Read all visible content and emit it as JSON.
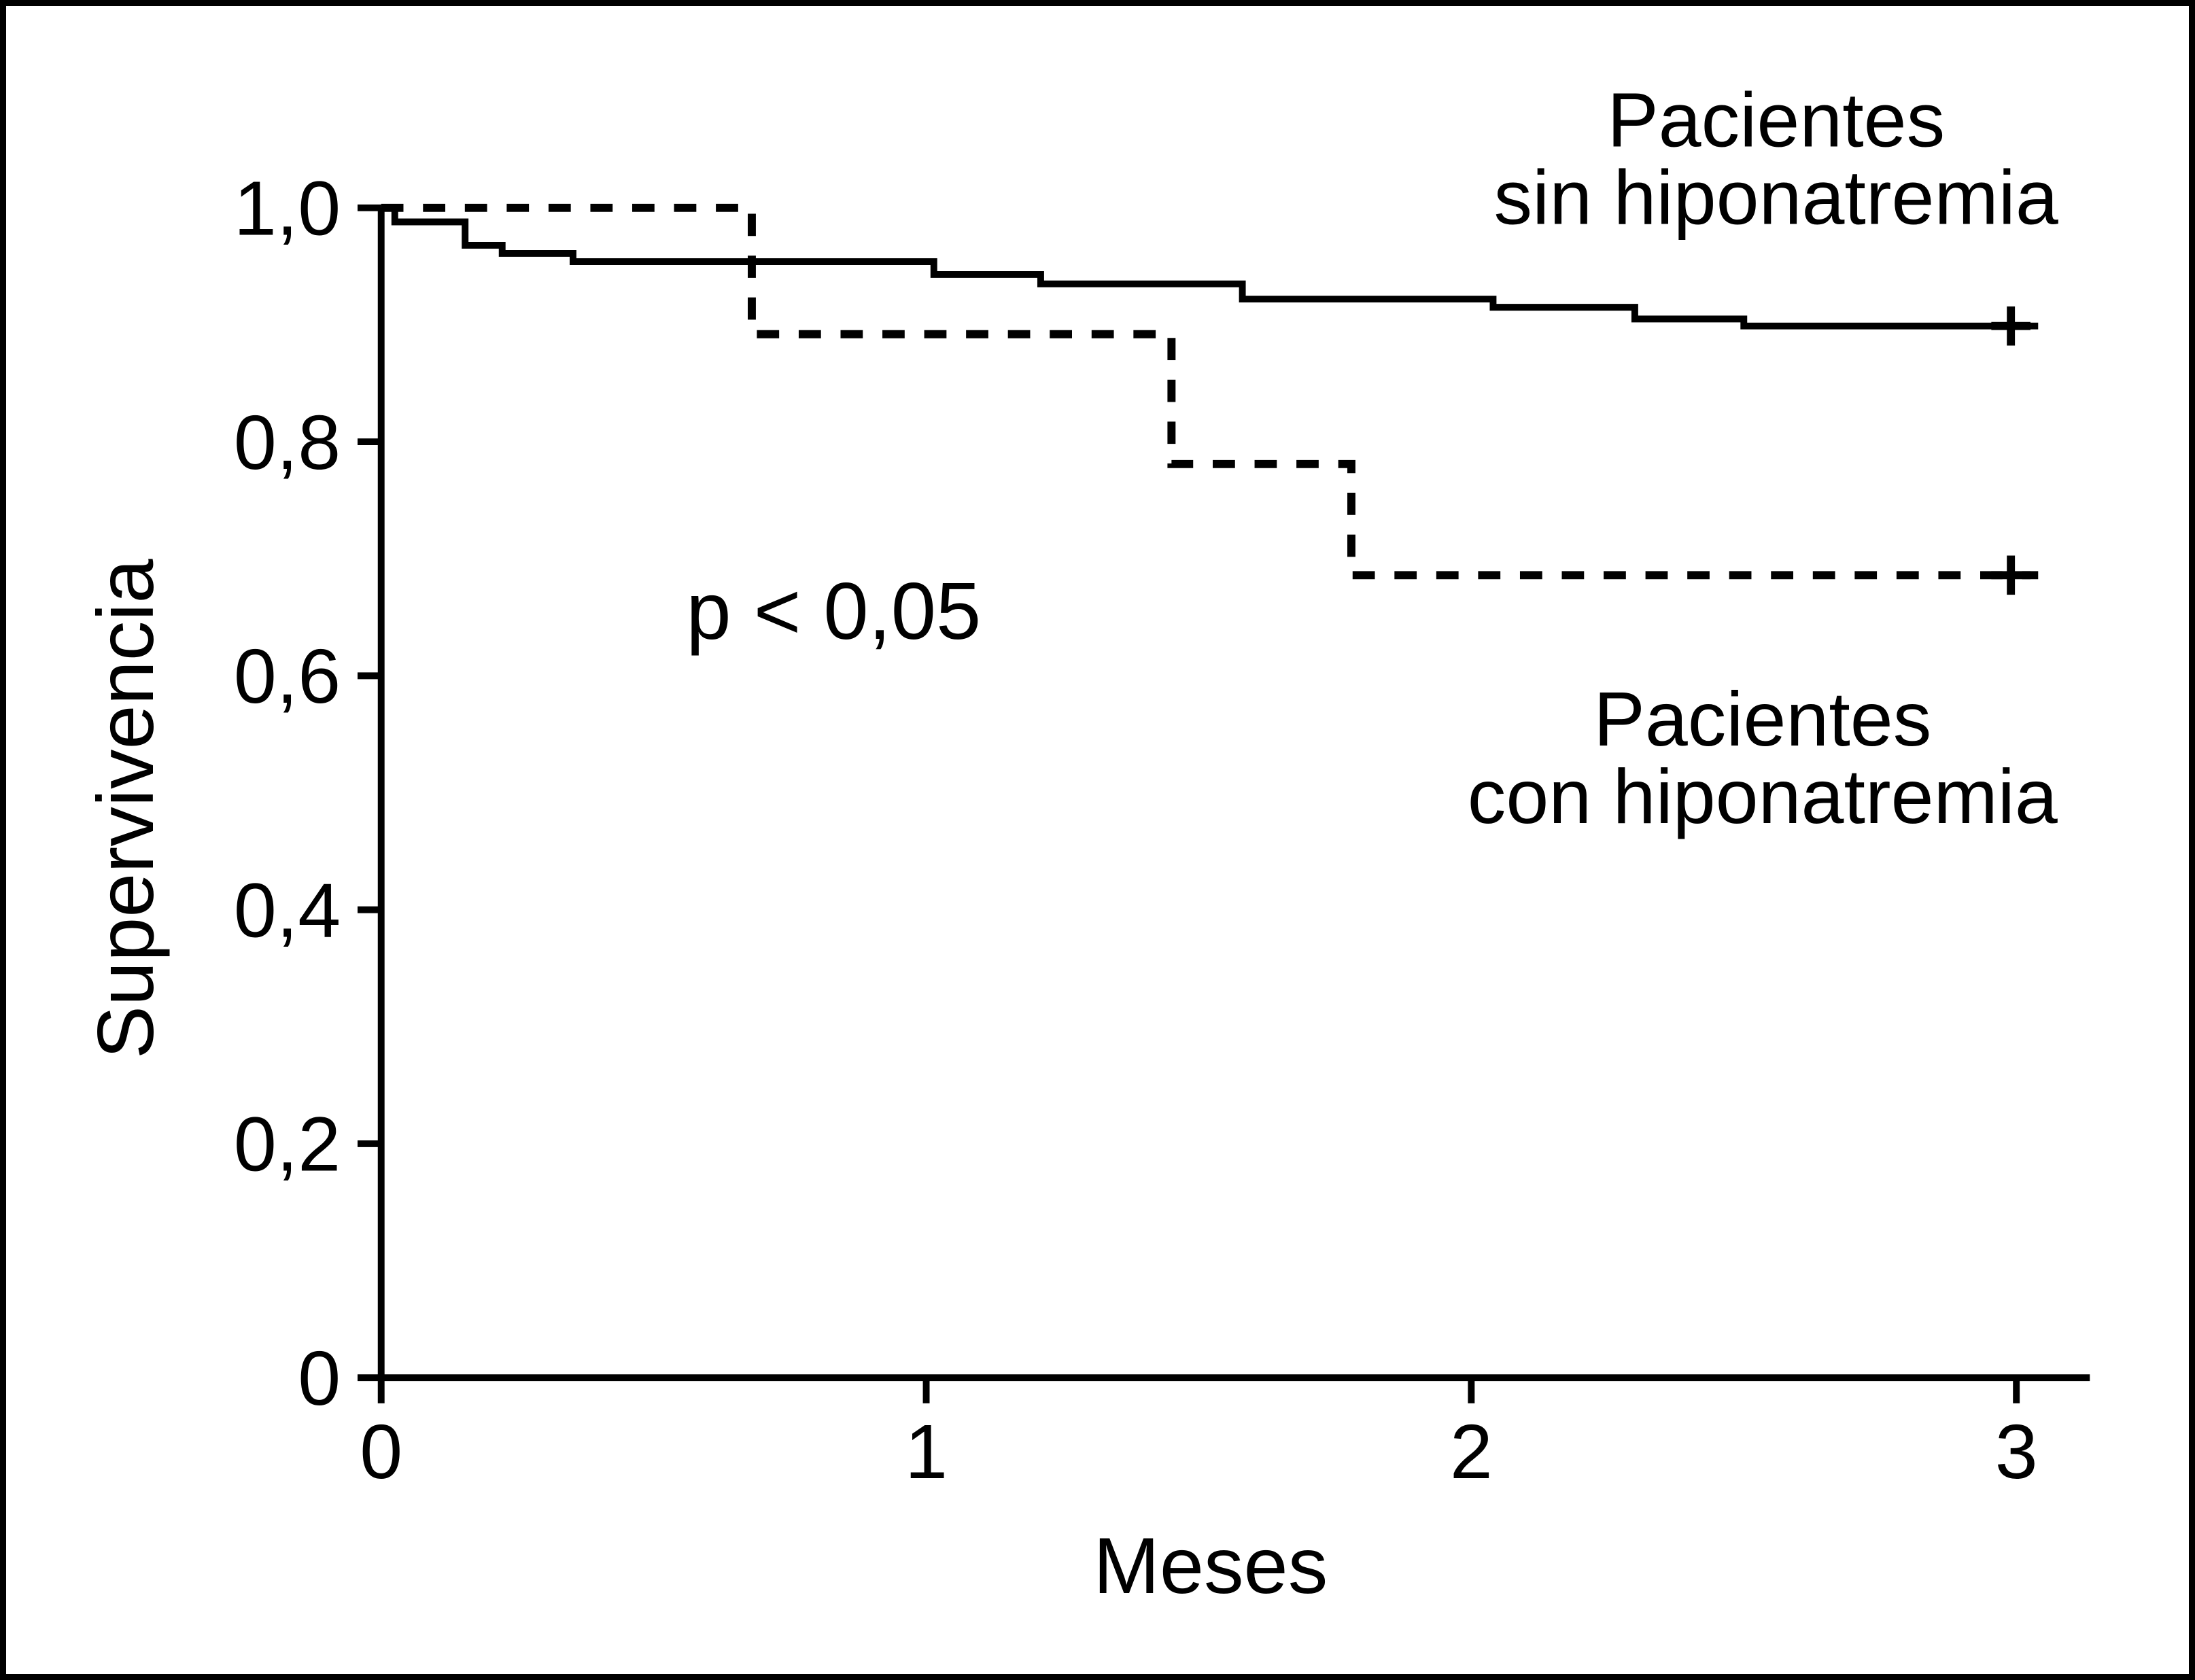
{
  "figure": {
    "background_color": "#ffffff",
    "line_color": "#000000",
    "frame": "black rectangular border around entire image"
  },
  "chart_data": {
    "type": "line",
    "subtype": "kaplan-meier-step-survival",
    "title": "",
    "xlabel": "Meses",
    "ylabel": "Supervivencia",
    "xlim": [
      0,
      3.05
    ],
    "ylim": [
      0,
      1.0
    ],
    "grid": false,
    "legend_position": "inline-annotations",
    "x_ticks": [
      {
        "label": "0",
        "value": 0
      },
      {
        "label": "1",
        "value": 1
      },
      {
        "label": "2",
        "value": 2
      },
      {
        "label": "3",
        "value": 3
      }
    ],
    "y_ticks": [
      {
        "label": "1,0",
        "value": 1.0
      },
      {
        "label": "0,8",
        "value": 0.8
      },
      {
        "label": "0,6",
        "value": 0.6
      },
      {
        "label": "0,4",
        "value": 0.4
      },
      {
        "label": "0,2",
        "value": 0.2
      },
      {
        "label": "0",
        "value": 0.0
      }
    ],
    "annotation": {
      "text": "p < 0,05"
    },
    "series": [
      {
        "name": "Pacientes sin hiponatremia",
        "label_line1": "Pacientes",
        "label_line2": "sin hiponatremia",
        "style": "solid",
        "steps": [
          [
            0.0,
            1.0
          ],
          [
            0.025,
            0.988
          ],
          [
            0.154,
            0.968
          ],
          [
            0.222,
            0.961
          ],
          [
            0.352,
            0.954
          ],
          [
            1.014,
            0.943
          ],
          [
            1.21,
            0.935
          ],
          [
            1.58,
            0.922
          ],
          [
            2.04,
            0.915
          ],
          [
            2.3,
            0.905
          ],
          [
            2.5,
            0.899
          ]
        ],
        "end_x": 3.04,
        "censor_marks": [
          {
            "x": 2.99,
            "y": 0.899
          }
        ]
      },
      {
        "name": "Pacientes con hiponatremia",
        "label_line1": "Pacientes",
        "label_line2": "con hiponatremia",
        "style": "dashed",
        "steps": [
          [
            0.0,
            1.0
          ],
          [
            0.68,
            0.892
          ],
          [
            1.45,
            0.781
          ],
          [
            1.78,
            0.686
          ]
        ],
        "end_x": 3.04,
        "censor_marks": [
          {
            "x": 2.99,
            "y": 0.686
          }
        ]
      }
    ]
  }
}
